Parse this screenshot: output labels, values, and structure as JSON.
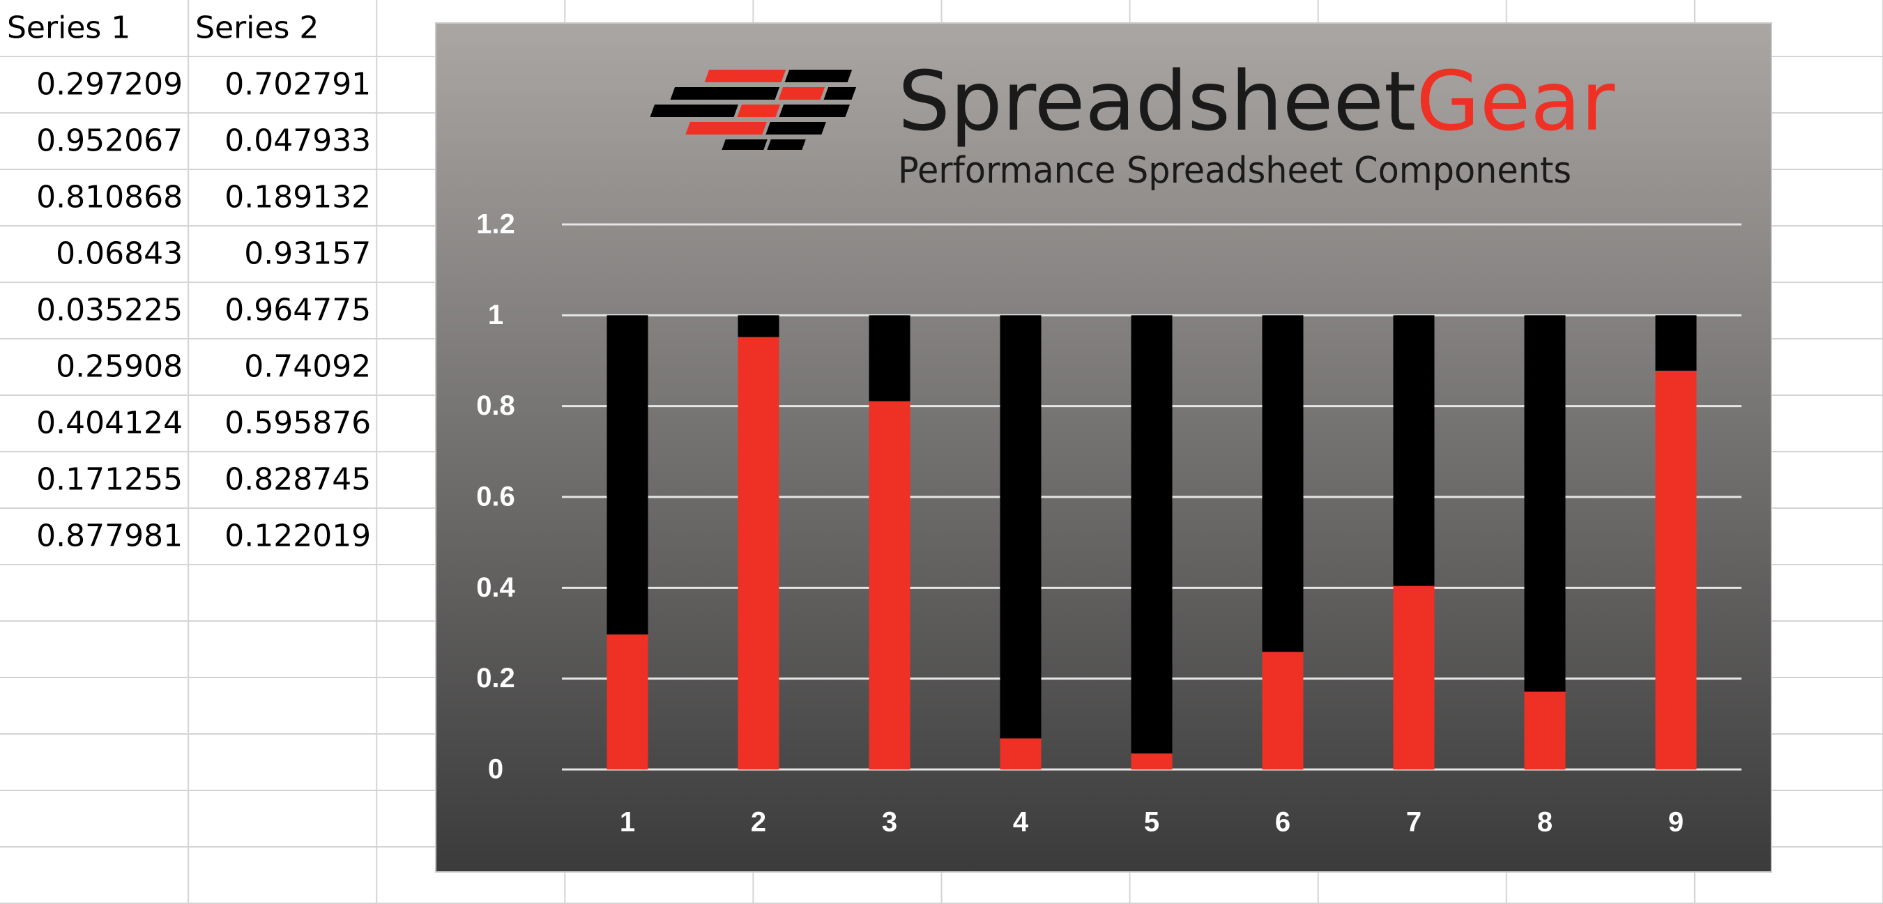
{
  "logo": {
    "name_main": "Spreadsheet",
    "name_accent": "Gear",
    "tagline": "Performance Spreadsheet Components"
  },
  "chart_data": {
    "type": "stacked_bar",
    "categories": [
      "1",
      "2",
      "3",
      "4",
      "5",
      "6",
      "7",
      "8",
      "9"
    ],
    "series": [
      {
        "name": "Series 1",
        "color": "#ee3124",
        "values": [
          0.297209,
          0.952067,
          0.810868,
          0.06843,
          0.035225,
          0.25908,
          0.404124,
          0.171255,
          0.877981
        ]
      },
      {
        "name": "Series 2",
        "color": "#000000",
        "values": [
          0.702791,
          0.047933,
          0.189132,
          0.93157,
          0.964775,
          0.74092,
          0.595876,
          0.828745,
          0.122019
        ]
      }
    ],
    "ylim": [
      0,
      1.2
    ],
    "yticks": [
      0,
      0.2,
      0.4,
      0.6,
      0.8,
      1,
      1.2
    ],
    "grid": true
  }
}
